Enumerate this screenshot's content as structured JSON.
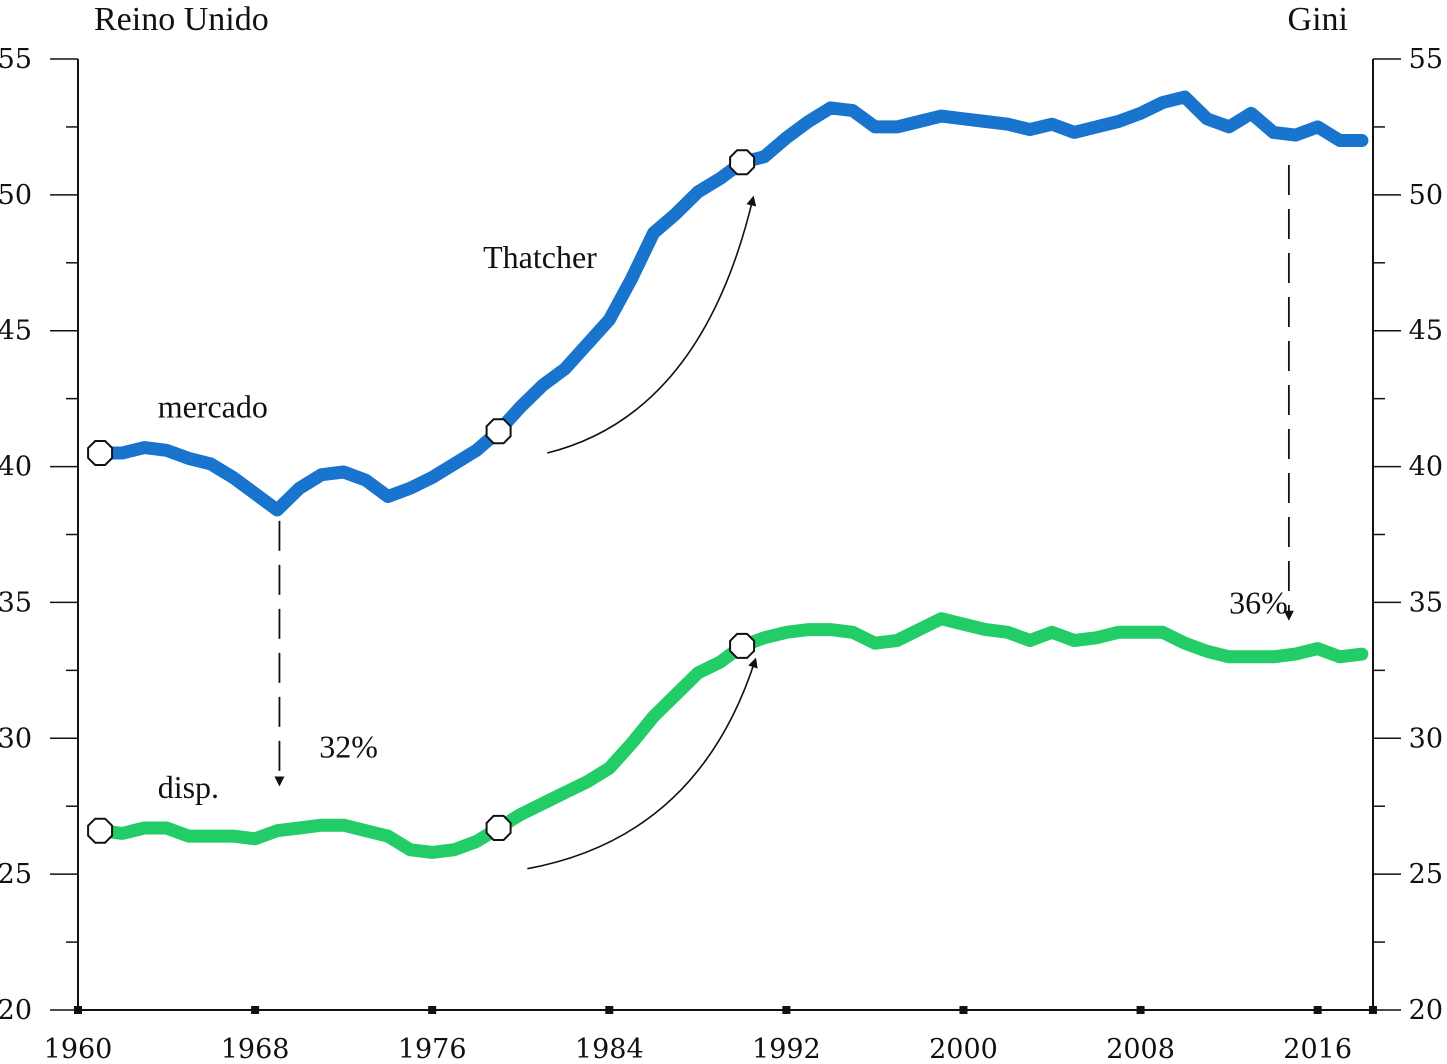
{
  "chart_data": {
    "type": "line",
    "title": "Reino Unido",
    "right_axis_title": "Gini",
    "xlabel": "",
    "ylabel": "",
    "xlim": [
      1960,
      2018.5
    ],
    "ylim": [
      20,
      55
    ],
    "x_ticks": [
      1960,
      1968,
      1976,
      1984,
      1992,
      2000,
      2008,
      2016
    ],
    "y_ticks": [
      20,
      25,
      30,
      35,
      40,
      45,
      50,
      55
    ],
    "y_ticks_right": [
      20,
      25,
      30,
      35,
      40,
      45,
      50,
      55
    ],
    "grid": false,
    "series": [
      {
        "name": "mercado",
        "color": "#1874CD",
        "x": [
          1961,
          1962,
          1963,
          1964,
          1965,
          1966,
          1967,
          1968,
          1969,
          1970,
          1971,
          1972,
          1973,
          1974,
          1975,
          1976,
          1977,
          1978,
          1979,
          1980,
          1981,
          1982,
          1983,
          1984,
          1985,
          1986,
          1987,
          1988,
          1989,
          1990,
          1991,
          1992,
          1993,
          1994,
          1995,
          1996,
          1997,
          1998,
          1999,
          2000,
          2001,
          2002,
          2003,
          2004,
          2005,
          2006,
          2007,
          2008,
          2009,
          2010,
          2011,
          2012,
          2013,
          2014,
          2015,
          2016,
          2017,
          2018
        ],
        "values": [
          40.5,
          40.5,
          40.7,
          40.6,
          40.3,
          40.1,
          39.6,
          39.0,
          38.4,
          39.2,
          39.7,
          39.8,
          39.5,
          38.9,
          39.2,
          39.6,
          40.1,
          40.6,
          41.3,
          42.2,
          43.0,
          43.6,
          44.5,
          45.4,
          46.9,
          48.6,
          49.3,
          50.1,
          50.6,
          51.2,
          51.4,
          52.1,
          52.7,
          53.2,
          53.1,
          52.5,
          52.5,
          52.7,
          52.9,
          52.8,
          52.7,
          52.6,
          52.4,
          52.6,
          52.3,
          52.5,
          52.7,
          53.0,
          53.4,
          53.6,
          52.8,
          52.5,
          53.0,
          52.3,
          52.2,
          52.5,
          52.0,
          52.0
        ],
        "markers": [
          1961,
          1979,
          1990
        ]
      },
      {
        "name": "disp.",
        "color": "#22CC66",
        "x": [
          1961,
          1962,
          1963,
          1964,
          1965,
          1966,
          1967,
          1968,
          1969,
          1970,
          1971,
          1972,
          1973,
          1974,
          1975,
          1976,
          1977,
          1978,
          1979,
          1980,
          1981,
          1982,
          1983,
          1984,
          1985,
          1986,
          1987,
          1988,
          1989,
          1990,
          1991,
          1992,
          1993,
          1994,
          1995,
          1996,
          1997,
          1998,
          1999,
          2000,
          2001,
          2002,
          2003,
          2004,
          2005,
          2006,
          2007,
          2008,
          2009,
          2010,
          2011,
          2012,
          2013,
          2014,
          2015,
          2016,
          2017,
          2018
        ],
        "values": [
          26.6,
          26.5,
          26.7,
          26.7,
          26.4,
          26.4,
          26.4,
          26.3,
          26.6,
          26.7,
          26.8,
          26.8,
          26.6,
          26.4,
          25.9,
          25.8,
          25.9,
          26.2,
          26.7,
          27.2,
          27.6,
          28.0,
          28.4,
          28.9,
          29.8,
          30.8,
          31.6,
          32.4,
          32.8,
          33.4,
          33.7,
          33.9,
          34.0,
          34.0,
          33.9,
          33.5,
          33.6,
          34.0,
          34.4,
          34.2,
          34.0,
          33.9,
          33.6,
          33.9,
          33.6,
          33.7,
          33.9,
          33.9,
          33.9,
          33.5,
          33.2,
          33.0,
          33.0,
          33.0,
          33.1,
          33.3,
          33.0,
          33.1
        ],
        "markers": [
          1961,
          1979,
          1990
        ]
      }
    ],
    "annotations": [
      {
        "text": "mercado",
        "at": [
          1963.6,
          41.8
        ]
      },
      {
        "text": "Thatcher",
        "at": [
          1978.3,
          47.3
        ]
      },
      {
        "text": "disp.",
        "at": [
          1963.6,
          27.8
        ]
      },
      {
        "text": "32%",
        "at": [
          1970.9,
          29.3
        ]
      },
      {
        "text": "36%",
        "at": [
          2012.0,
          34.6
        ]
      }
    ],
    "arrows": [
      {
        "kind": "curved",
        "from": [
          1981.2,
          40.5
        ],
        "to": [
          1990.5,
          49.9
        ]
      },
      {
        "kind": "curved",
        "from": [
          1980.3,
          25.2
        ],
        "to": [
          1990.6,
          32.9
        ]
      },
      {
        "kind": "dashed",
        "from": [
          1969.1,
          38.0
        ],
        "to": [
          1969.1,
          28.3
        ]
      },
      {
        "kind": "dashed",
        "from": [
          2014.7,
          51.1
        ],
        "to": [
          2014.7,
          34.4
        ]
      }
    ]
  }
}
